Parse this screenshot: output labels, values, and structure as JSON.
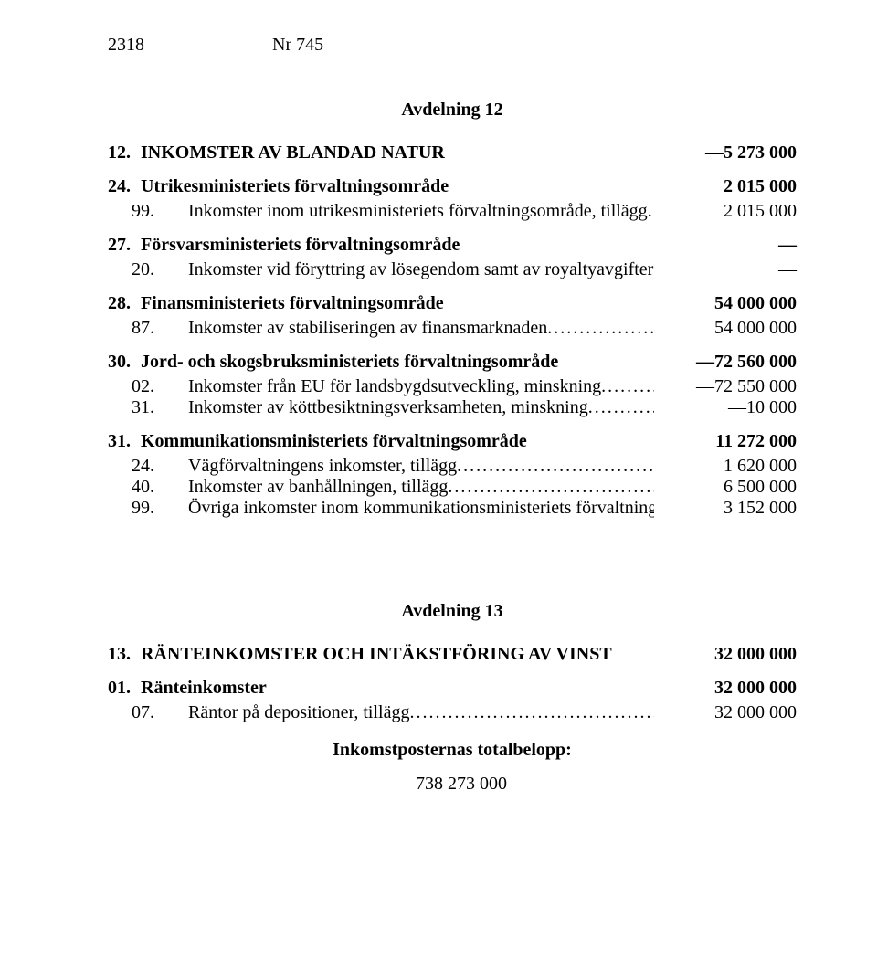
{
  "header": {
    "page_no": "2318",
    "doc_no": "Nr 745"
  },
  "sec1": {
    "title": "Avdelning 12",
    "h12": {
      "num": "12.",
      "label": "INKOMSTER AV BLANDAD NATUR",
      "amount": "—5 273 000"
    },
    "g24": {
      "num": "24.",
      "label": "Utrikesministeriets förvaltningsområde",
      "amount": "2 015 000"
    },
    "g24_99": {
      "num": "99.",
      "label": "Inkomster inom utrikesministeriets förvaltningsområde, tillägg",
      "amount": "2 015 000"
    },
    "g27": {
      "num": "27.",
      "label": "Försvarsministeriets förvaltningsområde",
      "amount": "—"
    },
    "g27_20": {
      "num": "20.",
      "label": "Inkomster vid föryttring av lösegendom samt av royaltyavgifter",
      "amount": "—"
    },
    "g28": {
      "num": "28.",
      "label": "Finansministeriets förvaltningsområde",
      "amount": "54 000 000"
    },
    "g28_87": {
      "num": "87.",
      "label": "Inkomster av stabiliseringen av finansmarknaden",
      "amount": "54 000 000"
    },
    "g30": {
      "num": "30.",
      "label": "Jord- och skogsbruksministeriets förvaltningsområde",
      "amount": "—72 560 000"
    },
    "g30_02": {
      "num": "02.",
      "label": "Inkomster från EU för landsbygdsutveckling, minskning",
      "amount": "—72 550 000"
    },
    "g30_31": {
      "num": "31.",
      "label": "Inkomster av köttbesiktningsverksamheten, minskning",
      "amount": "—10 000"
    },
    "g31": {
      "num": "31.",
      "label": "Kommunikationsministeriets förvaltningsområde",
      "amount": "11 272 000"
    },
    "g31_24": {
      "num": "24.",
      "label": "Vägförvaltningens inkomster, tillägg",
      "amount": "1 620 000"
    },
    "g31_40": {
      "num": "40.",
      "label": "Inkomster av banhållningen, tillägg",
      "amount": "6 500 000"
    },
    "g31_99": {
      "num": "99.",
      "label": "Övriga inkomster inom kommunikationsministeriets förvaltningsområde, tillägg",
      "amount": "3 152 000"
    }
  },
  "sec2": {
    "title": "Avdelning 13",
    "h13": {
      "num": "13.",
      "label": "RÄNTEINKOMSTER OCH INTÄKSTFÖRING AV VINST",
      "amount": "32 000 000"
    },
    "g01": {
      "num": "01.",
      "label": "Ränteinkomster",
      "amount": "32 000 000"
    },
    "g01_07": {
      "num": "07.",
      "label": "Räntor på depositioner, tillägg",
      "amount": "32 000 000"
    }
  },
  "total": {
    "label": "Inkomstposternas totalbelopp:",
    "value": "—738 273 000"
  }
}
